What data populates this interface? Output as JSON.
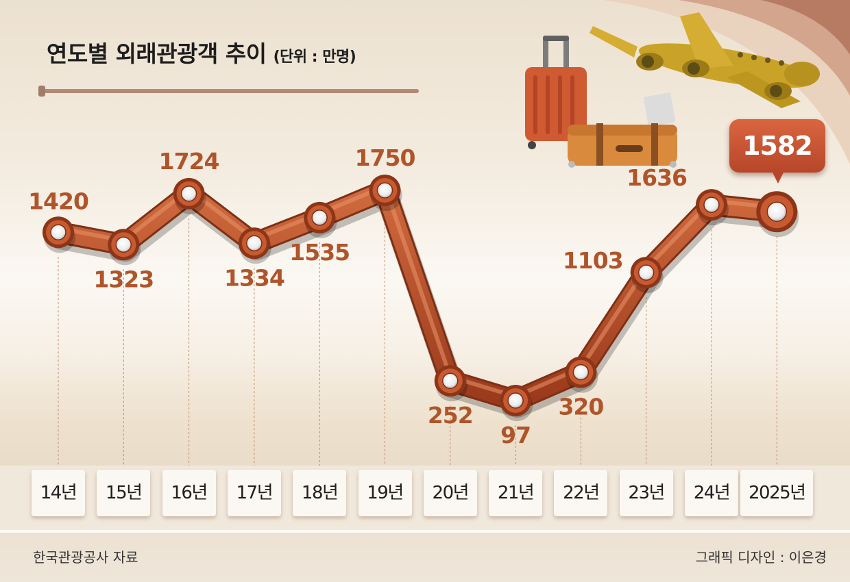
{
  "chart_data": {
    "type": "line",
    "title": "연도별 외래관광객 추이",
    "unit": "(단위 : 만명)",
    "categories": [
      "14년",
      "15년",
      "16년",
      "17년",
      "18년",
      "19년",
      "20년",
      "21년",
      "22년",
      "23년",
      "24년",
      "2025년"
    ],
    "series": [
      {
        "values": [
          1420,
          1323,
          1724,
          1334,
          1535,
          1750,
          252,
          97,
          320,
          1103,
          1636,
          1582
        ]
      }
    ],
    "highlight_label": "1582",
    "grid": false,
    "legend": "none",
    "colors": {
      "line": "#c0552c",
      "label": "#b0542a",
      "callout": "#c4502f"
    }
  },
  "footer": {
    "source": "한국관광공사 자료",
    "credit": "그래픽 디자인 : 이은경"
  }
}
